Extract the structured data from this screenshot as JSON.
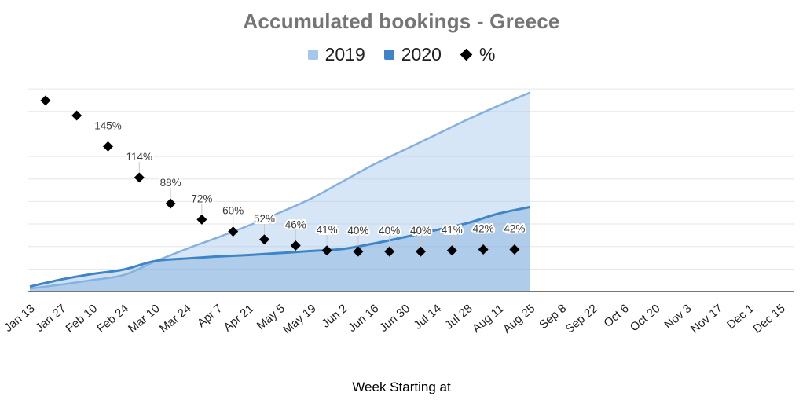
{
  "title": "Accumulated bookings - Greece",
  "legend": {
    "items": [
      {
        "label": "2019",
        "swatch": "square",
        "color": "#a4c7ea"
      },
      {
        "label": "2020",
        "swatch": "square",
        "color": "#3d85c6"
      },
      {
        "label": "%",
        "swatch": "diamond",
        "color": "#000000"
      }
    ]
  },
  "x_axis_title": "Week Starting at",
  "colors": {
    "title_text": "#757575",
    "legend_text": "#212121",
    "gridline": "#e6e6e6",
    "axis_line": "#757575",
    "x_label_text": "#1e1e1e",
    "percent_label_text": "#3a3a3a",
    "series_2019_line": "#85b1e0",
    "series_2019_fill": "rgba(164,199,234,0.45)",
    "series_2020_line": "#3d85c6",
    "series_2020_fill": "rgba(61,133,198,0.25)",
    "diamond": "#000000"
  },
  "chart_data": {
    "type": "area",
    "title": "Accumulated bookings - Greece",
    "xlabel": "Week Starting at",
    "ylabel": "",
    "legend_position": "top",
    "grid": "horizontal-only",
    "y_axis_labels_visible": false,
    "categories": [
      "Jan 13",
      "Jan 27",
      "Feb 10",
      "Feb 24",
      "Mar 10",
      "Mar 24",
      "Apr 7",
      "Apr 21",
      "May 5",
      "May 19",
      "Jun 2",
      "Jun 16",
      "Jun 30",
      "Jul 14",
      "Jul 28",
      "Aug 11",
      "Aug 25",
      "Sep 8",
      "Sep 22",
      "Oct 6",
      "Oct 20",
      "Nov 3",
      "Nov 17",
      "Dec 1",
      "Dec 15"
    ],
    "series": [
      {
        "name": "2019",
        "type": "area-smooth",
        "values": [
          3,
          7,
          11.5,
          16.5,
          30,
          42.5,
          54,
          66,
          79,
          93,
          110,
          127,
          142,
          157,
          172,
          186,
          199
        ],
        "note_scale": "relative units on hidden y-axis; 1 unit = 1 percentage point of the % series"
      },
      {
        "name": "2020",
        "type": "area-smooth",
        "values": [
          5,
          12,
          17.5,
          22,
          30.5,
          33,
          35,
          36.5,
          38.5,
          40.5,
          42.5,
          48,
          54.5,
          61.5,
          68.5,
          78,
          84.5
        ]
      },
      {
        "name": "%",
        "type": "scatter-diamond",
        "offset_half_slot": true,
        "values": [
          191,
          176,
          145,
          114,
          88,
          72,
          60,
          52,
          46,
          41,
          40,
          40,
          40,
          41,
          42,
          42
        ],
        "labels": [
          "",
          "",
          "145%",
          "114%",
          "88%",
          "72%",
          "60%",
          "52%",
          "46%",
          "41%",
          "40%",
          "40%",
          "40%",
          "41%",
          "42%",
          "42%"
        ]
      }
    ]
  }
}
